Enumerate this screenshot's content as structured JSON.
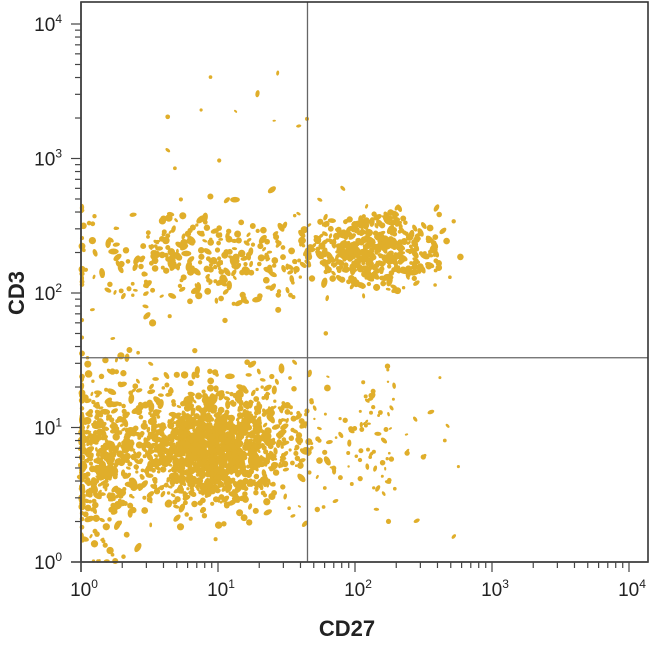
{
  "chart_data": {
    "type": "scatter",
    "subtype": "flow-cytometry-quadrant-dot-plot",
    "title": "",
    "xlabel": "CD27",
    "ylabel": "CD3",
    "x_scale": "log",
    "y_scale": "log",
    "xlim": [
      1,
      15000
    ],
    "ylim": [
      1,
      15000
    ],
    "x_ticks": [
      {
        "value": 1,
        "base": "10",
        "exp": "0"
      },
      {
        "value": 10,
        "base": "10",
        "exp": "1"
      },
      {
        "value": 100,
        "base": "10",
        "exp": "2"
      },
      {
        "value": 1000,
        "base": "10",
        "exp": "3"
      },
      {
        "value": 10000,
        "base": "10",
        "exp": "4"
      }
    ],
    "y_ticks": [
      {
        "value": 1,
        "base": "10",
        "exp": "0"
      },
      {
        "value": 10,
        "base": "10",
        "exp": "1"
      },
      {
        "value": 100,
        "base": "10",
        "exp": "2"
      },
      {
        "value": 1000,
        "base": "10",
        "exp": "3"
      },
      {
        "value": 10000,
        "base": "10",
        "exp": "4"
      }
    ],
    "quadrant_gates": {
      "x": 45,
      "y": 33
    },
    "grid": false,
    "legend": null,
    "dot_color": "#E0AE2A",
    "populations": [
      {
        "name": "CD27- CD3- (lower-left, main dense cluster)",
        "center_x": 9,
        "center_y": 7,
        "spread_log_x": 0.3,
        "spread_log_y": 0.22,
        "count": 1300,
        "quadrant": "LL"
      },
      {
        "name": "CD27- CD3- (axis-hugging tail)",
        "center_x": 1.4,
        "center_y": 6,
        "spread_log_x": 0.14,
        "spread_log_y": 0.32,
        "count": 380,
        "quadrant": "LL"
      },
      {
        "name": "CD27+ CD3+ (upper-right cluster)",
        "center_x": 130,
        "center_y": 210,
        "spread_log_x": 0.25,
        "spread_log_y": 0.13,
        "count": 420,
        "quadrant": "UR"
      },
      {
        "name": "CD27- CD3+ (upper-left band)",
        "center_x": 8,
        "center_y": 180,
        "spread_log_x": 0.5,
        "spread_log_y": 0.18,
        "count": 320,
        "quadrant": "UL"
      },
      {
        "name": "CD27+ CD3- (lower-right scatter)",
        "center_x": 110,
        "center_y": 9,
        "spread_log_x": 0.3,
        "spread_log_y": 0.3,
        "count": 110,
        "quadrant": "LR"
      },
      {
        "name": "sparse events (top)",
        "center_x": 6,
        "center_y": 1500,
        "spread_log_x": 0.45,
        "spread_log_y": 0.35,
        "count": 14,
        "quadrant": "UL"
      }
    ]
  }
}
